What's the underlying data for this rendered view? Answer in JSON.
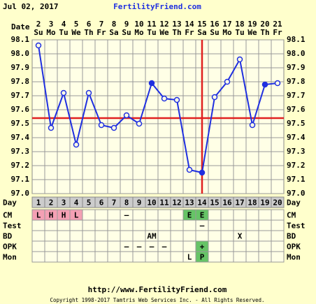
{
  "header": {
    "date": "Jul 02, 2017",
    "site": "FertilityFriend.com"
  },
  "chart_data": {
    "type": "line",
    "date_label": "Date",
    "dates": [
      2,
      3,
      4,
      5,
      6,
      7,
      8,
      9,
      10,
      11,
      12,
      13,
      14,
      15,
      16,
      17,
      18,
      19,
      20,
      21
    ],
    "weekdays": [
      "Su",
      "Mo",
      "Tu",
      "We",
      "Th",
      "Fr",
      "Sa",
      "Su",
      "Mo",
      "Tu",
      "We",
      "Th",
      "Fr",
      "Sa",
      "Su",
      "Mo",
      "Tu",
      "We",
      "Th",
      "Fr"
    ],
    "values": [
      98.06,
      97.47,
      97.72,
      97.35,
      97.72,
      97.49,
      97.47,
      97.56,
      97.5,
      97.79,
      97.68,
      97.67,
      97.17,
      97.15,
      97.69,
      97.8,
      97.96,
      97.49,
      97.78,
      97.79
    ],
    "filled": [
      false,
      false,
      false,
      false,
      false,
      false,
      false,
      false,
      false,
      true,
      false,
      false,
      false,
      true,
      false,
      false,
      false,
      false,
      true,
      false
    ],
    "color": "#1f2fe0",
    "coverline": 97.54,
    "ovulation_day": 14,
    "line_color": "#e02020",
    "ylim": [
      97.0,
      98.1
    ],
    "yticks": [
      {
        "value": 97.0,
        "label": "97.0"
      },
      97.1,
      97.2,
      97.3,
      97.4,
      97.5,
      97.6,
      97.7,
      97.8,
      97.9,
      {
        "value": 98.0,
        "label": "98.0"
      },
      98.1
    ],
    "grid": true,
    "day_label": "Day",
    "days": [
      1,
      2,
      3,
      4,
      5,
      6,
      7,
      8,
      9,
      10,
      11,
      12,
      13,
      14,
      15,
      16,
      17,
      18,
      19,
      20
    ],
    "rows": [
      {
        "label": "CM",
        "cells": [
          "L",
          "H",
          "H",
          "L",
          null,
          null,
          null,
          "–",
          null,
          null,
          null,
          null,
          "E",
          "E",
          null,
          null,
          null,
          null,
          null,
          null
        ],
        "colors": {
          "L": "#f4a0b4",
          "H": "#f4a0b4",
          "E": "#66c466"
        }
      },
      {
        "label": "Test",
        "cells": [
          null,
          null,
          null,
          null,
          null,
          null,
          null,
          null,
          null,
          null,
          null,
          null,
          null,
          "–",
          null,
          null,
          null,
          null,
          null,
          null
        ],
        "colors": {}
      },
      {
        "label": "BD",
        "cells": [
          null,
          null,
          null,
          null,
          null,
          null,
          null,
          null,
          null,
          "AM",
          null,
          null,
          null,
          null,
          null,
          null,
          "X",
          null,
          null,
          null
        ],
        "colors": {}
      },
      {
        "label": "OPK",
        "cells": [
          null,
          null,
          null,
          null,
          null,
          null,
          null,
          "–",
          "–",
          "–",
          "–",
          null,
          null,
          "+",
          null,
          null,
          null,
          null,
          null,
          null
        ],
        "colors": {
          "+": "#66c466"
        }
      },
      {
        "label": "Mon",
        "cells": [
          null,
          null,
          null,
          null,
          null,
          null,
          null,
          null,
          null,
          null,
          null,
          null,
          "L",
          "P",
          null,
          null,
          null,
          null,
          null,
          null
        ],
        "colors": {
          "P": "#66c466"
        }
      }
    ]
  },
  "footer": {
    "url": "http://www.FertilityFriend.com",
    "copyright": "Copyright 1998-2017 Tamtris Web Services Inc. - All Rights Reserved."
  }
}
